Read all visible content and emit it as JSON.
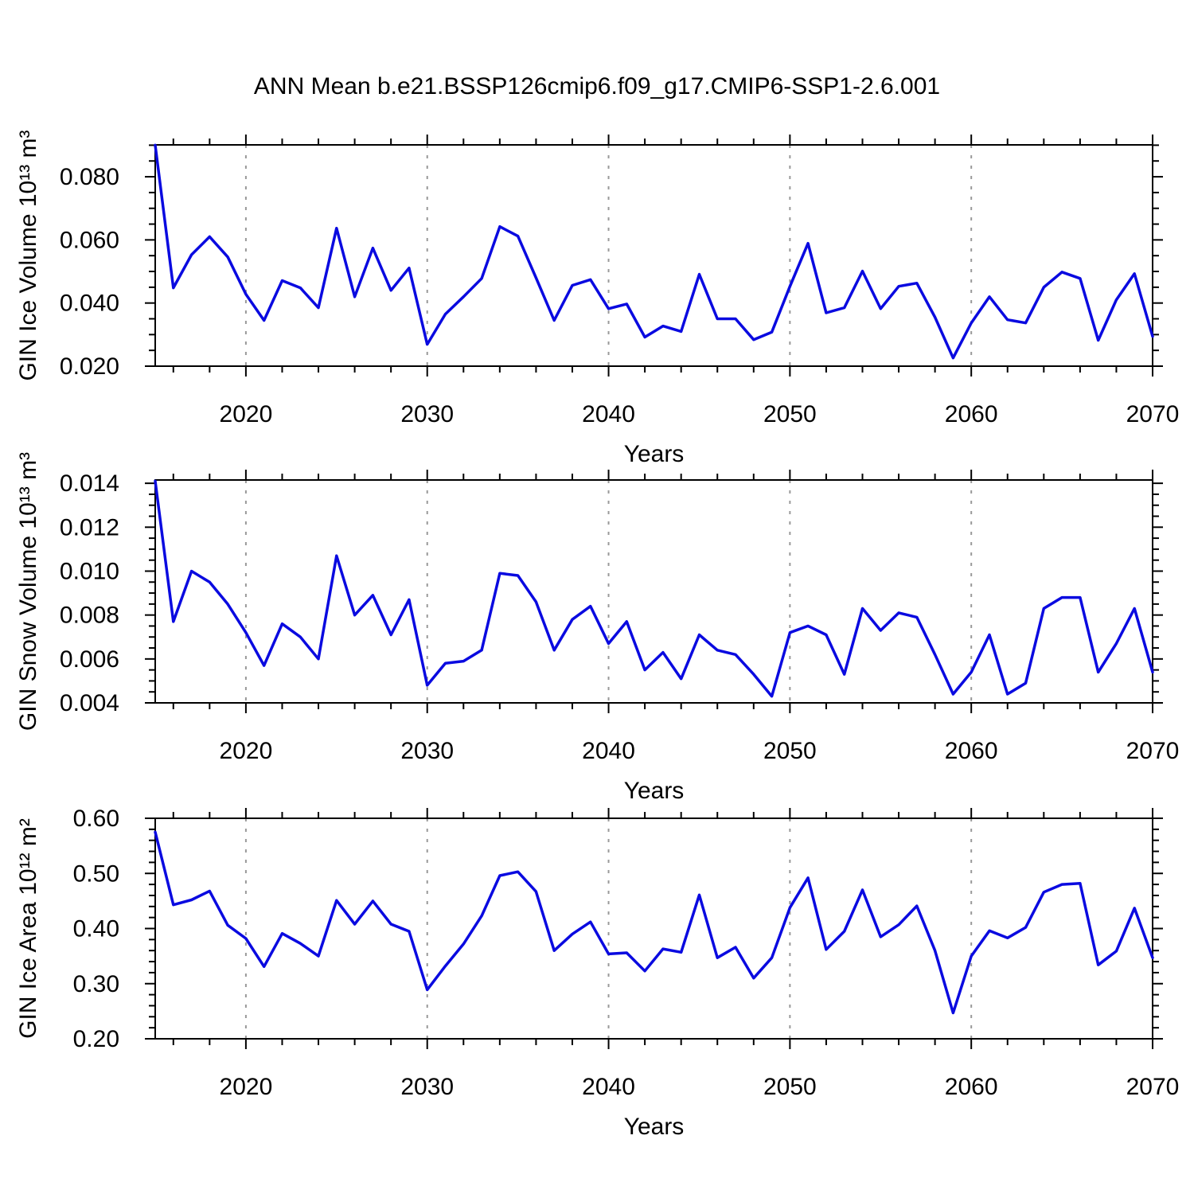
{
  "page_title": "ANN Mean b.e21.BSSP126cmip6.f09_g17.CMIP6-SSP1-2.6.001",
  "line_color": "#0a0ae0",
  "grid_color": "#999999",
  "years": [
    2015,
    2016,
    2017,
    2018,
    2019,
    2020,
    2021,
    2022,
    2023,
    2024,
    2025,
    2026,
    2027,
    2028,
    2029,
    2030,
    2031,
    2032,
    2033,
    2034,
    2035,
    2036,
    2037,
    2038,
    2039,
    2040,
    2041,
    2042,
    2043,
    2044,
    2045,
    2046,
    2047,
    2048,
    2049,
    2050,
    2051,
    2052,
    2053,
    2054,
    2055,
    2056,
    2057,
    2058,
    2059,
    2060,
    2061,
    2062,
    2063,
    2064,
    2065,
    2066,
    2067,
    2068,
    2069,
    2070
  ],
  "chart_data": [
    {
      "type": "line",
      "panel": "gin-ice-volume",
      "ylabel": "GIN Ice Volume 10¹³ m³",
      "xlabel": "Years",
      "ylim": [
        0.02,
        0.0901
      ],
      "yticks": [
        0.02,
        0.04,
        0.06,
        0.08
      ],
      "ytick_labels": [
        "0.020",
        "0.040",
        "0.060",
        "0.080"
      ],
      "y_minor_step": 0.005,
      "xticks": [
        2020,
        2030,
        2040,
        2050,
        2060,
        2070
      ],
      "xtick_labels": [
        "2020",
        "2030",
        "2040",
        "2050",
        "2060",
        "2070"
      ],
      "x_minor_step": 2,
      "grid_x": [
        2020,
        2030,
        2040,
        2050,
        2060
      ],
      "values": [
        0.09,
        0.0448,
        0.0553,
        0.061,
        0.0546,
        0.0428,
        0.0345,
        0.0471,
        0.0448,
        0.0385,
        0.0637,
        0.042,
        0.0574,
        0.044,
        0.0511,
        0.0269,
        0.0365,
        0.042,
        0.0478,
        0.0642,
        0.0612,
        0.048,
        0.0345,
        0.0456,
        0.0474,
        0.0382,
        0.0397,
        0.0292,
        0.0327,
        0.031,
        0.0491,
        0.035,
        0.035,
        0.0284,
        0.0308,
        0.0453,
        0.0589,
        0.0369,
        0.0385,
        0.0501,
        0.0382,
        0.0453,
        0.0463,
        0.0355,
        0.0226,
        0.0337,
        0.042,
        0.0347,
        0.0337,
        0.045,
        0.0498,
        0.0478,
        0.0282,
        0.041,
        0.0493,
        0.0294
      ]
    },
    {
      "type": "line",
      "panel": "gin-snow-volume",
      "ylabel": "GIN Snow Volume 10¹³ m³",
      "xlabel": "Years",
      "ylim": [
        0.004,
        0.01415
      ],
      "yticks": [
        0.004,
        0.006,
        0.008,
        0.01,
        0.012,
        0.014
      ],
      "ytick_labels": [
        "0.004",
        "0.006",
        "0.008",
        "0.010",
        "0.012",
        "0.014"
      ],
      "y_minor_step": 0.0005,
      "xticks": [
        2020,
        2030,
        2040,
        2050,
        2060,
        2070
      ],
      "xtick_labels": [
        "2020",
        "2030",
        "2040",
        "2050",
        "2060",
        "2070"
      ],
      "x_minor_step": 2,
      "grid_x": [
        2020,
        2030,
        2040,
        2050,
        2060
      ],
      "values": [
        0.0141,
        0.0077,
        0.01,
        0.0095,
        0.0085,
        0.0072,
        0.0057,
        0.0076,
        0.007,
        0.006,
        0.0107,
        0.008,
        0.0089,
        0.0071,
        0.0087,
        0.0048,
        0.0058,
        0.0059,
        0.0064,
        0.0099,
        0.0098,
        0.0086,
        0.0064,
        0.0078,
        0.0084,
        0.0067,
        0.0077,
        0.0055,
        0.0063,
        0.0051,
        0.0071,
        0.0064,
        0.0062,
        0.0053,
        0.0043,
        0.0072,
        0.0075,
        0.0071,
        0.0053,
        0.0083,
        0.0073,
        0.0081,
        0.0079,
        0.0062,
        0.0044,
        0.0054,
        0.0071,
        0.0044,
        0.0049,
        0.0083,
        0.0088,
        0.0088,
        0.0054,
        0.0067,
        0.0083,
        0.0054
      ]
    },
    {
      "type": "line",
      "panel": "gin-ice-area",
      "ylabel": "GIN Ice Area 10¹² m²",
      "xlabel": "Years",
      "ylim": [
        0.2,
        0.6
      ],
      "yticks": [
        0.2,
        0.3,
        0.4,
        0.5,
        0.6
      ],
      "ytick_labels": [
        "0.20",
        "0.30",
        "0.40",
        "0.50",
        "0.60"
      ],
      "y_minor_step": 0.02,
      "xticks": [
        2020,
        2030,
        2040,
        2050,
        2060,
        2070
      ],
      "xtick_labels": [
        "2020",
        "2030",
        "2040",
        "2050",
        "2060",
        "2070"
      ],
      "x_minor_step": 2,
      "grid_x": [
        2020,
        2030,
        2040,
        2050,
        2060
      ],
      "values": [
        0.575,
        0.443,
        0.452,
        0.468,
        0.406,
        0.382,
        0.331,
        0.391,
        0.373,
        0.35,
        0.451,
        0.408,
        0.45,
        0.408,
        0.395,
        0.289,
        0.332,
        0.372,
        0.423,
        0.496,
        0.503,
        0.467,
        0.36,
        0.39,
        0.412,
        0.354,
        0.356,
        0.323,
        0.363,
        0.357,
        0.461,
        0.347,
        0.366,
        0.31,
        0.347,
        0.438,
        0.492,
        0.362,
        0.395,
        0.47,
        0.385,
        0.407,
        0.441,
        0.36,
        0.247,
        0.35,
        0.396,
        0.383,
        0.402,
        0.466,
        0.48,
        0.482,
        0.334,
        0.359,
        0.437,
        0.347
      ]
    }
  ]
}
